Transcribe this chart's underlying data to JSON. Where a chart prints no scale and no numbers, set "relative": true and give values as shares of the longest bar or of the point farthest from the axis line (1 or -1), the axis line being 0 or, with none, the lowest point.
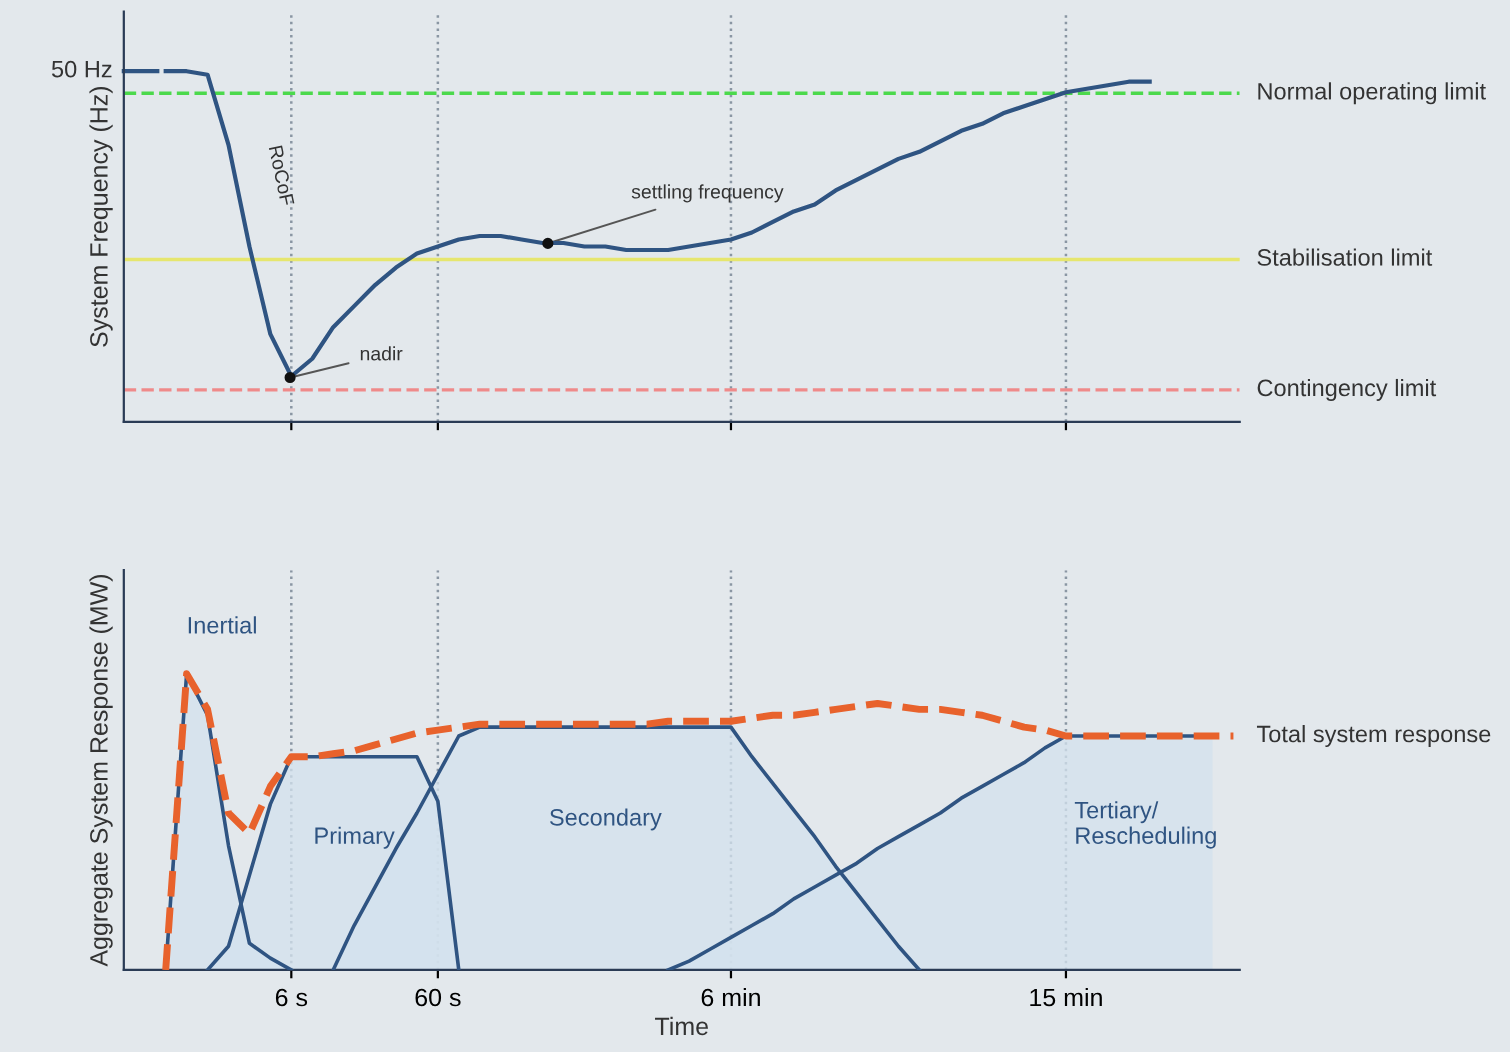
{
  "chart_data": [
    {
      "type": "line",
      "relative": true,
      "ylabel": "System Frequency (Hz)",
      "categories": [
        null,
        null,
        null,
        null,
        null,
        null,
        null,
        null,
        null,
        null,
        null,
        null,
        null,
        null,
        null,
        null,
        null,
        null,
        null,
        null,
        null,
        null,
        null,
        null,
        null,
        null,
        null,
        null,
        null,
        null,
        null,
        null,
        null,
        null,
        null,
        null,
        null,
        null,
        null,
        null,
        null,
        null,
        null,
        null,
        null,
        null,
        null,
        null,
        null,
        null,
        null,
        null,
        null,
        null
      ],
      "grid": "x",
      "tick_labels": false,
      "legend": false,
      "marker": "none",
      "line_style": "solid",
      "series": [
        {
          "color": "#2f5482",
          "values": [
            null,
            null,
            1.0,
            1.0,
            0.99,
            0.79,
            0.5,
            0.25,
            0.13,
            0.18,
            0.27,
            0.33,
            0.39,
            0.44,
            0.48,
            0.5,
            0.52,
            0.53,
            0.53,
            0.52,
            0.51,
            0.51,
            0.5,
            0.5,
            0.49,
            0.49,
            0.49,
            0.5,
            0.51,
            0.52,
            0.54,
            0.57,
            0.6,
            0.62,
            0.66,
            0.69,
            0.72,
            0.75,
            0.77,
            0.8,
            0.83,
            0.85,
            0.88,
            0.9,
            0.92,
            0.94,
            0.95,
            0.96,
            0.97,
            0.97,
            null,
            null,
            null,
            null
          ]
        }
      ],
      "ref_lines": [
        {
          "axis": "y",
          "value": 0.937,
          "label": "Normal operating limit",
          "color": "#4cd94c",
          "line_style": "dashed"
        },
        {
          "axis": "y",
          "value": 0.463,
          "label": "Stabilisation limit",
          "color": "#e6e66e",
          "line_style": "solid"
        },
        {
          "axis": "y",
          "value": 0.091,
          "label": "Contingency limit",
          "color": "#ef8a8a",
          "line_style": "dashed"
        }
      ],
      "annotations": [
        "50 Hz",
        "RoCoF",
        "nadir",
        "settling frequency"
      ]
    },
    {
      "type": "area",
      "relative": true,
      "xlabel": "Time",
      "ylabel": "Aggregate System Response (MW)",
      "categories": [
        null,
        null,
        null,
        null,
        null,
        null,
        null,
        null,
        "6 s",
        null,
        null,
        null,
        null,
        null,
        null,
        "60 s",
        null,
        null,
        null,
        null,
        null,
        null,
        null,
        null,
        null,
        null,
        null,
        null,
        null,
        "6 min",
        null,
        null,
        null,
        null,
        null,
        null,
        null,
        null,
        null,
        null,
        null,
        null,
        null,
        null,
        null,
        "15 min",
        null,
        null,
        null,
        null,
        null,
        null,
        null,
        null
      ],
      "grid": "x",
      "tick_labels": "x",
      "legend": false,
      "series": [
        {
          "name": "Inertial",
          "color": "#2f5482",
          "values": [
            null,
            null,
            0,
            1.0,
            0.86,
            0.42,
            0.09,
            0.04,
            0,
            null,
            null,
            null,
            null,
            null,
            null,
            null,
            null,
            null,
            null,
            null,
            null,
            null,
            null,
            null,
            null,
            null,
            null,
            null,
            null,
            null,
            null,
            null,
            null,
            null,
            null,
            null,
            null,
            null,
            null,
            null,
            null,
            null,
            null,
            null,
            null,
            null,
            null,
            null,
            null,
            null,
            null,
            null,
            null,
            null
          ]
        },
        {
          "name": "Primary",
          "color": "#2f5482",
          "values": [
            null,
            null,
            null,
            null,
            0,
            0.08,
            0.32,
            0.56,
            0.72,
            0.72,
            0.72,
            0.72,
            0.72,
            0.72,
            0.72,
            0.57,
            0,
            null,
            null,
            null,
            null,
            null,
            null,
            null,
            null,
            null,
            null,
            null,
            null,
            null,
            null,
            null,
            null,
            null,
            null,
            null,
            null,
            null,
            null,
            null,
            null,
            null,
            null,
            null,
            null,
            null,
            null,
            null,
            null,
            null,
            null,
            null,
            null,
            null
          ]
        },
        {
          "name": "Secondary",
          "color": "#2f5482",
          "values": [
            null,
            null,
            null,
            null,
            null,
            null,
            null,
            null,
            null,
            null,
            0,
            0.15,
            0.28,
            0.41,
            0.53,
            0.66,
            0.79,
            0.82,
            0.82,
            0.82,
            0.82,
            0.82,
            0.82,
            0.82,
            0.82,
            0.82,
            0.82,
            0.82,
            0.82,
            0.82,
            0.72,
            0.63,
            0.54,
            0.45,
            0.35,
            0.26,
            0.17,
            0.08,
            0,
            null,
            null,
            null,
            null,
            null,
            null,
            null,
            null,
            null,
            null,
            null,
            null,
            null,
            null,
            null
          ]
        },
        {
          "name": "Tertiary/ Rescheduling",
          "color": "#2f5482",
          "values": [
            null,
            null,
            null,
            null,
            null,
            null,
            null,
            null,
            null,
            null,
            null,
            null,
            null,
            null,
            null,
            null,
            null,
            null,
            null,
            null,
            null,
            null,
            null,
            null,
            null,
            null,
            0,
            0.03,
            0.07,
            0.11,
            0.15,
            0.19,
            0.24,
            0.28,
            0.32,
            0.36,
            0.41,
            0.45,
            0.49,
            0.53,
            0.58,
            0.62,
            0.66,
            0.7,
            0.75,
            0.79,
            0.79,
            0.79,
            0.79,
            0.79,
            0.79,
            0.79,
            0.79,
            null
          ]
        },
        {
          "name": "Total system response",
          "type": "line",
          "line_style": "dashed",
          "color": "#e8622c",
          "values": [
            null,
            null,
            0,
            1.0,
            0.88,
            0.53,
            0.46,
            0.62,
            0.72,
            0.72,
            0.73,
            0.74,
            0.76,
            0.78,
            0.8,
            0.81,
            0.82,
            0.83,
            0.83,
            0.83,
            0.83,
            0.83,
            0.83,
            0.83,
            0.83,
            0.83,
            0.84,
            0.84,
            0.84,
            0.84,
            0.85,
            0.86,
            0.86,
            0.87,
            0.88,
            0.89,
            0.9,
            0.89,
            0.88,
            0.88,
            0.87,
            0.86,
            0.84,
            0.82,
            0.81,
            0.79,
            0.79,
            0.79,
            0.79,
            0.79,
            0.79,
            0.79,
            0.79,
            0.79
          ]
        }
      ]
    }
  ]
}
